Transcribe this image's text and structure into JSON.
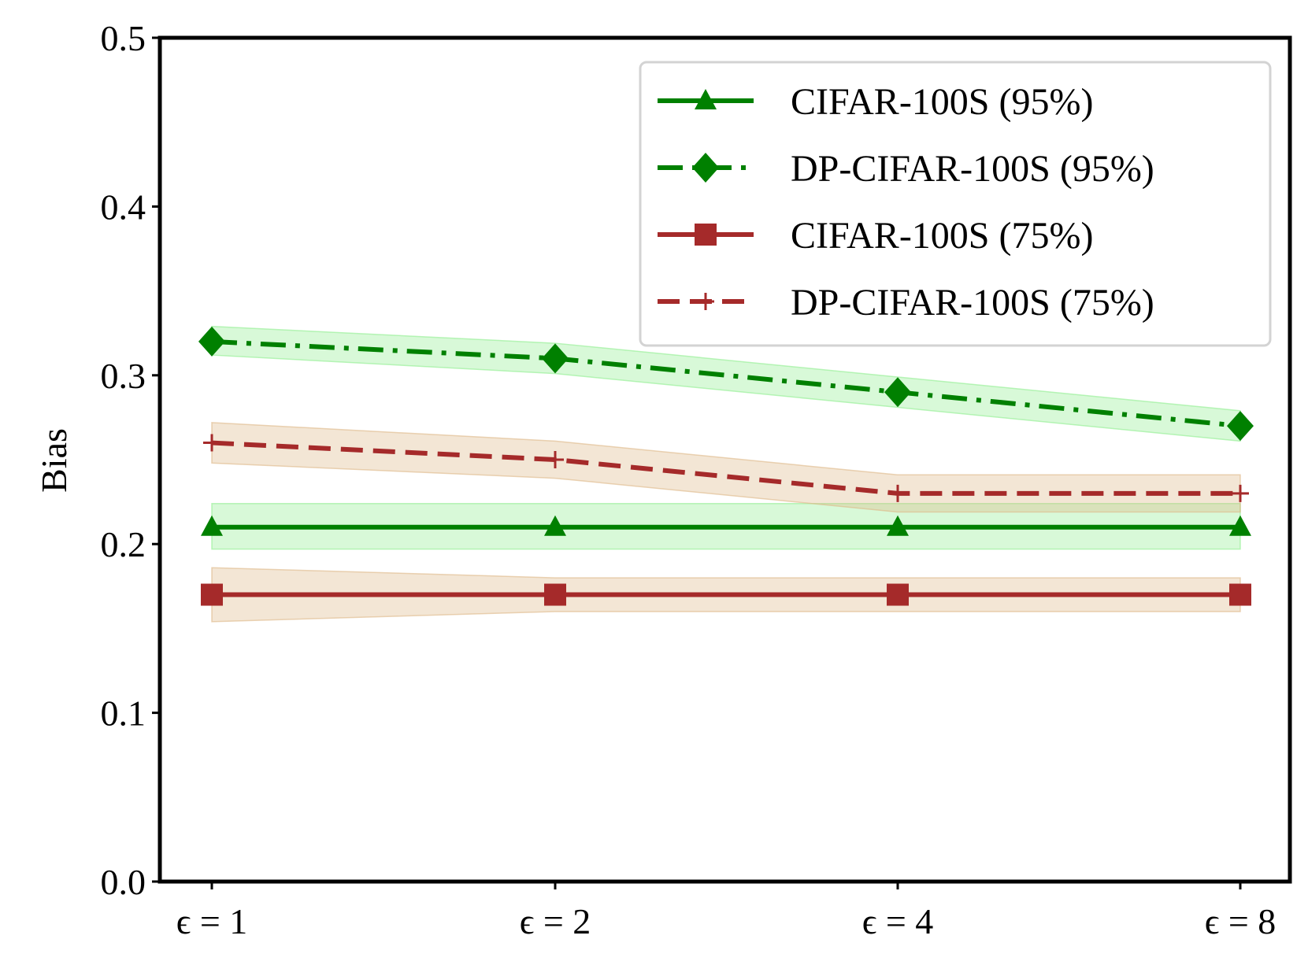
{
  "chart_data": {
    "type": "line",
    "title": "",
    "xlabel": "",
    "ylabel": "Bias",
    "ylim": [
      0.0,
      0.5
    ],
    "yticks": [
      "0.0",
      "0.1",
      "0.2",
      "0.3",
      "0.4",
      "0.5"
    ],
    "categories": [
      "ϵ = 1",
      "ϵ = 2",
      "ϵ = 4",
      "ϵ = 8"
    ],
    "grid": false,
    "legend_position": "top-right",
    "series": [
      {
        "name": "CIFAR-100S (95%)",
        "values": [
          0.21,
          0.21,
          0.21,
          0.21
        ],
        "band_lower": [
          0.197,
          0.197,
          0.197,
          0.197
        ],
        "band_upper": [
          0.224,
          0.224,
          0.224,
          0.224
        ],
        "color": "#008000",
        "band_color": "#90ee90",
        "line_style": "solid",
        "marker": "triangle"
      },
      {
        "name": "DP-CIFAR-100S (95%)",
        "values": [
          0.32,
          0.31,
          0.29,
          0.27
        ],
        "band_lower": [
          0.312,
          0.301,
          0.281,
          0.261
        ],
        "band_upper": [
          0.329,
          0.319,
          0.299,
          0.279
        ],
        "color": "#008000",
        "band_color": "#90ee90",
        "line_style": "dashdot",
        "marker": "diamond"
      },
      {
        "name": "CIFAR-100S (75%)",
        "values": [
          0.17,
          0.17,
          0.17,
          0.17
        ],
        "band_lower": [
          0.154,
          0.16,
          0.16,
          0.16
        ],
        "band_upper": [
          0.186,
          0.18,
          0.18,
          0.18
        ],
        "color": "#a52a2a",
        "band_color": "#deb887",
        "line_style": "solid",
        "marker": "square"
      },
      {
        "name": "DP-CIFAR-100S (75%)",
        "values": [
          0.26,
          0.25,
          0.23,
          0.23
        ],
        "band_lower": [
          0.248,
          0.239,
          0.219,
          0.219
        ],
        "band_upper": [
          0.272,
          0.261,
          0.241,
          0.241
        ],
        "color": "#a52a2a",
        "band_color": "#deb887",
        "line_style": "dashed",
        "marker": "plus"
      }
    ]
  }
}
